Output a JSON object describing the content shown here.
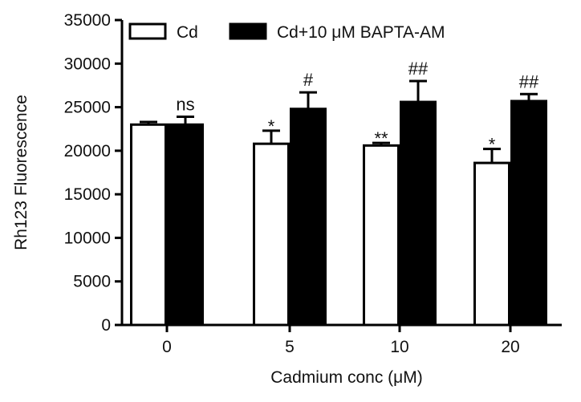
{
  "chart_data": {
    "type": "bar",
    "categories": [
      "0",
      "5",
      "10",
      "20"
    ],
    "xlabel": "Cadmium conc (μM)",
    "ylabel": "Rh123 Fluorescence",
    "ylim": [
      0,
      35000
    ],
    "yticks": [
      0,
      5000,
      10000,
      15000,
      20000,
      25000,
      30000,
      35000
    ],
    "legend_position": "top",
    "series": [
      {
        "name": "Cd",
        "color": "#ffffff",
        "values": [
          23000,
          20800,
          20600,
          18600
        ],
        "errors": [
          300,
          1500,
          300,
          1600
        ],
        "annotations": [
          "",
          "*",
          "**",
          "*"
        ]
      },
      {
        "name": "Cd+10 μM BAPTA-AM",
        "color": "#000000",
        "values": [
          23000,
          24800,
          25600,
          25700
        ],
        "errors": [
          900,
          1900,
          2400,
          800
        ],
        "annotations": [
          "ns",
          "#",
          "##",
          "##"
        ]
      }
    ]
  }
}
